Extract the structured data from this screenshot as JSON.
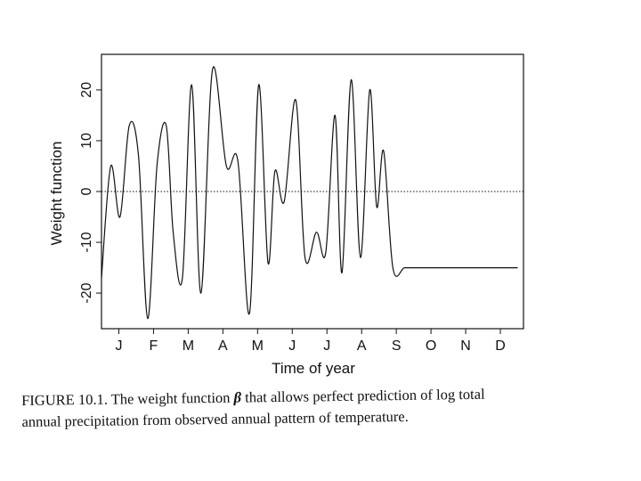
{
  "chart_data": {
    "type": "line",
    "ylabel": "Weight function",
    "xlabel": "Time of year",
    "ylim": [
      -27,
      27
    ],
    "xlim": [
      0,
      365
    ],
    "yticks": [
      -20,
      -10,
      0,
      10,
      20
    ],
    "ytick_labels": [
      "-20",
      "-10",
      "0",
      "10",
      "20"
    ],
    "xticks": [
      15,
      45,
      75,
      105,
      135,
      165,
      195,
      225,
      255,
      285,
      315,
      345
    ],
    "xtick_labels": [
      "J",
      "F",
      "M",
      "A",
      "M",
      "J",
      "J",
      "A",
      "S",
      "O",
      "N",
      "D"
    ],
    "reference_line": {
      "y": 0.0,
      "style": "dotted"
    },
    "series": [
      {
        "x": [
          0,
          8,
          16,
          24,
          32,
          40,
          48,
          56,
          62,
          70,
          78,
          86,
          96,
          108,
          118,
          128,
          136,
          144,
          150,
          158,
          168,
          176,
          186,
          194,
          202,
          208,
          216,
          224,
          232,
          238,
          244,
          252,
          262,
          270,
          278,
          288,
          298,
          306,
          314,
          322,
          330,
          338,
          346,
          352,
          360
        ],
        "y": [
          -17,
          5,
          -5,
          13,
          7,
          -25,
          5,
          13,
          -8,
          -17,
          21,
          -20,
          24,
          5,
          6,
          -24,
          21,
          -14,
          4,
          -2,
          18,
          -13,
          -8,
          -12,
          15,
          -16,
          22,
          -13,
          20,
          -3,
          8,
          -15,
          -15,
          -15,
          -15,
          -15,
          -15,
          -15,
          -15,
          -15,
          -15,
          -15,
          -15,
          -15,
          -15
        ]
      }
    ]
  },
  "caption": {
    "line1_before": "FIGURE 10.1. The weight function",
    "symbol": "β",
    "line1_after": "that allows perfect prediction of log total",
    "line2": "annual precipitation from observed annual pattern of temperature."
  }
}
